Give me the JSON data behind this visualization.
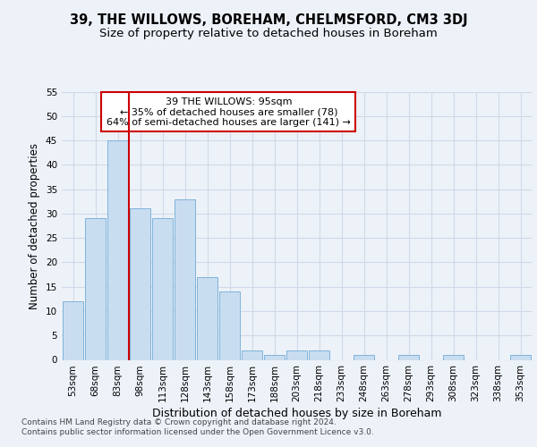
{
  "title1": "39, THE WILLOWS, BOREHAM, CHELMSFORD, CM3 3DJ",
  "title2": "Size of property relative to detached houses in Boreham",
  "xlabel": "Distribution of detached houses by size in Boreham",
  "ylabel": "Number of detached properties",
  "bar_labels": [
    "53sqm",
    "68sqm",
    "83sqm",
    "98sqm",
    "113sqm",
    "128sqm",
    "143sqm",
    "158sqm",
    "173sqm",
    "188sqm",
    "203sqm",
    "218sqm",
    "233sqm",
    "248sqm",
    "263sqm",
    "278sqm",
    "293sqm",
    "308sqm",
    "323sqm",
    "338sqm",
    "353sqm"
  ],
  "bar_values": [
    12,
    29,
    45,
    31,
    29,
    33,
    17,
    14,
    2,
    1,
    2,
    2,
    0,
    1,
    0,
    1,
    0,
    1,
    0,
    0,
    1
  ],
  "bar_color": "#c9ddf0",
  "bar_edge_color": "#7fb3d9",
  "grid_color": "#d0d9e8",
  "background_color": "#edf2f9",
  "vline_color": "#cc0000",
  "vline_pos": 2.5,
  "annotation_text": "39 THE WILLOWS: 95sqm\n← 35% of detached houses are smaller (78)\n64% of semi-detached houses are larger (141) →",
  "annotation_box_facecolor": "#ffffff",
  "annotation_box_edgecolor": "#cc0000",
  "ylim": [
    0,
    55
  ],
  "yticks": [
    0,
    5,
    10,
    15,
    20,
    25,
    30,
    35,
    40,
    45,
    50,
    55
  ],
  "footer1": "Contains HM Land Registry data © Crown copyright and database right 2024.",
  "footer2": "Contains public sector information licensed under the Open Government Licence v3.0.",
  "title1_fontsize": 10.5,
  "title2_fontsize": 9.5,
  "tick_fontsize": 7.5,
  "ylabel_fontsize": 8.5,
  "xlabel_fontsize": 9,
  "annotation_fontsize": 8,
  "footer_fontsize": 6.5
}
